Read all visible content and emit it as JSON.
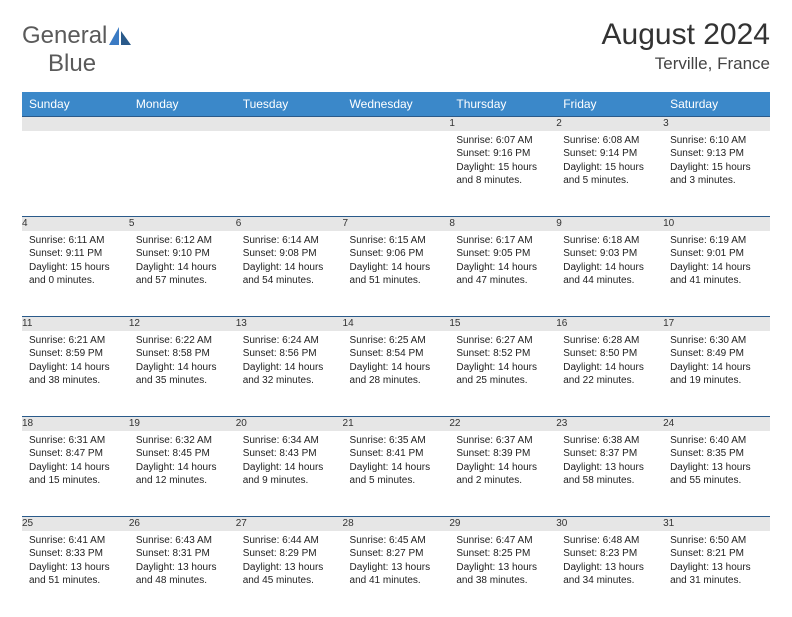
{
  "brand": {
    "text1": "General",
    "text2": "Blue"
  },
  "title": "August 2024",
  "location": "Terville, France",
  "day_headers": [
    "Sunday",
    "Monday",
    "Tuesday",
    "Wednesday",
    "Thursday",
    "Friday",
    "Saturday"
  ],
  "colors": {
    "header_bg": "#3b88c9",
    "header_text": "#ffffff",
    "daynum_bg": "#e6e6e6",
    "border": "#2a5a8a",
    "logo_gray": "#5a5a5a",
    "logo_blue": "#3b7bc4"
  },
  "typography": {
    "title_fontsize": 30,
    "location_fontsize": 17,
    "header_fontsize": 12,
    "daynum_fontsize": 11,
    "body_fontsize": 10
  },
  "weeks": [
    [
      null,
      null,
      null,
      null,
      {
        "n": "1",
        "sr": "6:07 AM",
        "ss": "9:16 PM",
        "dl": "15 hours and 8 minutes."
      },
      {
        "n": "2",
        "sr": "6:08 AM",
        "ss": "9:14 PM",
        "dl": "15 hours and 5 minutes."
      },
      {
        "n": "3",
        "sr": "6:10 AM",
        "ss": "9:13 PM",
        "dl": "15 hours and 3 minutes."
      }
    ],
    [
      {
        "n": "4",
        "sr": "6:11 AM",
        "ss": "9:11 PM",
        "dl": "15 hours and 0 minutes."
      },
      {
        "n": "5",
        "sr": "6:12 AM",
        "ss": "9:10 PM",
        "dl": "14 hours and 57 minutes."
      },
      {
        "n": "6",
        "sr": "6:14 AM",
        "ss": "9:08 PM",
        "dl": "14 hours and 54 minutes."
      },
      {
        "n": "7",
        "sr": "6:15 AM",
        "ss": "9:06 PM",
        "dl": "14 hours and 51 minutes."
      },
      {
        "n": "8",
        "sr": "6:17 AM",
        "ss": "9:05 PM",
        "dl": "14 hours and 47 minutes."
      },
      {
        "n": "9",
        "sr": "6:18 AM",
        "ss": "9:03 PM",
        "dl": "14 hours and 44 minutes."
      },
      {
        "n": "10",
        "sr": "6:19 AM",
        "ss": "9:01 PM",
        "dl": "14 hours and 41 minutes."
      }
    ],
    [
      {
        "n": "11",
        "sr": "6:21 AM",
        "ss": "8:59 PM",
        "dl": "14 hours and 38 minutes."
      },
      {
        "n": "12",
        "sr": "6:22 AM",
        "ss": "8:58 PM",
        "dl": "14 hours and 35 minutes."
      },
      {
        "n": "13",
        "sr": "6:24 AM",
        "ss": "8:56 PM",
        "dl": "14 hours and 32 minutes."
      },
      {
        "n": "14",
        "sr": "6:25 AM",
        "ss": "8:54 PM",
        "dl": "14 hours and 28 minutes."
      },
      {
        "n": "15",
        "sr": "6:27 AM",
        "ss": "8:52 PM",
        "dl": "14 hours and 25 minutes."
      },
      {
        "n": "16",
        "sr": "6:28 AM",
        "ss": "8:50 PM",
        "dl": "14 hours and 22 minutes."
      },
      {
        "n": "17",
        "sr": "6:30 AM",
        "ss": "8:49 PM",
        "dl": "14 hours and 19 minutes."
      }
    ],
    [
      {
        "n": "18",
        "sr": "6:31 AM",
        "ss": "8:47 PM",
        "dl": "14 hours and 15 minutes."
      },
      {
        "n": "19",
        "sr": "6:32 AM",
        "ss": "8:45 PM",
        "dl": "14 hours and 12 minutes."
      },
      {
        "n": "20",
        "sr": "6:34 AM",
        "ss": "8:43 PM",
        "dl": "14 hours and 9 minutes."
      },
      {
        "n": "21",
        "sr": "6:35 AM",
        "ss": "8:41 PM",
        "dl": "14 hours and 5 minutes."
      },
      {
        "n": "22",
        "sr": "6:37 AM",
        "ss": "8:39 PM",
        "dl": "14 hours and 2 minutes."
      },
      {
        "n": "23",
        "sr": "6:38 AM",
        "ss": "8:37 PM",
        "dl": "13 hours and 58 minutes."
      },
      {
        "n": "24",
        "sr": "6:40 AM",
        "ss": "8:35 PM",
        "dl": "13 hours and 55 minutes."
      }
    ],
    [
      {
        "n": "25",
        "sr": "6:41 AM",
        "ss": "8:33 PM",
        "dl": "13 hours and 51 minutes."
      },
      {
        "n": "26",
        "sr": "6:43 AM",
        "ss": "8:31 PM",
        "dl": "13 hours and 48 minutes."
      },
      {
        "n": "27",
        "sr": "6:44 AM",
        "ss": "8:29 PM",
        "dl": "13 hours and 45 minutes."
      },
      {
        "n": "28",
        "sr": "6:45 AM",
        "ss": "8:27 PM",
        "dl": "13 hours and 41 minutes."
      },
      {
        "n": "29",
        "sr": "6:47 AM",
        "ss": "8:25 PM",
        "dl": "13 hours and 38 minutes."
      },
      {
        "n": "30",
        "sr": "6:48 AM",
        "ss": "8:23 PM",
        "dl": "13 hours and 34 minutes."
      },
      {
        "n": "31",
        "sr": "6:50 AM",
        "ss": "8:21 PM",
        "dl": "13 hours and 31 minutes."
      }
    ]
  ],
  "labels": {
    "sunrise": "Sunrise: ",
    "sunset": "Sunset: ",
    "daylight": "Daylight: "
  }
}
